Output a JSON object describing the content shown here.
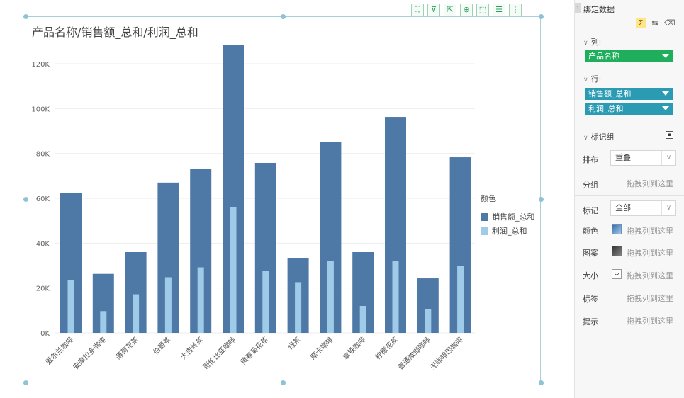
{
  "chart": {
    "title": "产品名称/销售额_总和/利润_总和",
    "toolbar": [
      {
        "name": "fullscreen-icon",
        "glyph": "⛶"
      },
      {
        "name": "filter-icon",
        "glyph": "⊽"
      },
      {
        "name": "drill-icon",
        "glyph": "⇱"
      },
      {
        "name": "zoom-in-icon",
        "glyph": "⊕"
      },
      {
        "name": "select-icon",
        "glyph": "⬚"
      },
      {
        "name": "list-icon",
        "glyph": "☰"
      },
      {
        "name": "more-icon",
        "glyph": "⋮"
      }
    ],
    "legend": {
      "title": "颜色",
      "items": [
        {
          "label": "销售额_总和",
          "color": "#4e79a7"
        },
        {
          "label": "利润_总和",
          "color": "#a0cbe8"
        }
      ]
    }
  },
  "chart_data": {
    "type": "bar",
    "title": "产品名称/销售额_总和/利润_总和",
    "categories": [
      "爱尔兰咖啡",
      "安摩拉多咖啡",
      "薄荷花茶",
      "伯爵茶",
      "大吉岭茶",
      "哥伦比亚咖啡",
      "黄春菊花茶",
      "绿茶",
      "摩卡咖啡",
      "拿铁咖啡",
      "柠檬花茶",
      "普通浓缩咖啡",
      "无咖啡因咖啡"
    ],
    "series": [
      {
        "name": "销售额_总和",
        "color": "#4e79a7",
        "values": [
          62500,
          26300,
          36000,
          67000,
          73200,
          128400,
          75800,
          33200,
          85000,
          36000,
          96300,
          24300,
          78300
        ]
      },
      {
        "name": "利润_总和",
        "color": "#a0cbe8",
        "values": [
          23600,
          9700,
          17200,
          24800,
          29200,
          56200,
          27600,
          22600,
          32000,
          12000,
          32000,
          10700,
          29700
        ]
      }
    ],
    "yticks": [
      "0K",
      "20K",
      "40K",
      "60K",
      "80K",
      "100K",
      "120K"
    ],
    "ylim": [
      0,
      120000
    ],
    "grid": true,
    "legend_position": "right",
    "xlabel": "",
    "ylabel": ""
  },
  "panel": {
    "title": "绑定数据",
    "icons": [
      "sigma-icon",
      "swap-icon",
      "eraser-icon"
    ],
    "columns_label": "列:",
    "columns": [
      {
        "label": "产品名称"
      }
    ],
    "rows_label": "行:",
    "rows": [
      {
        "label": "销售额_总和"
      },
      {
        "label": "利润_总和"
      }
    ],
    "marks_label": "标记组",
    "layout_label": "排布",
    "layout_value": "重叠",
    "group_label": "分组",
    "drop_hint": "拖拽列到这里",
    "mark_label": "标记",
    "mark_value": "全部",
    "color_label": "颜色",
    "pattern_label": "图案",
    "size_label": "大小",
    "tag_label": "标签",
    "tooltip_label": "提示"
  }
}
